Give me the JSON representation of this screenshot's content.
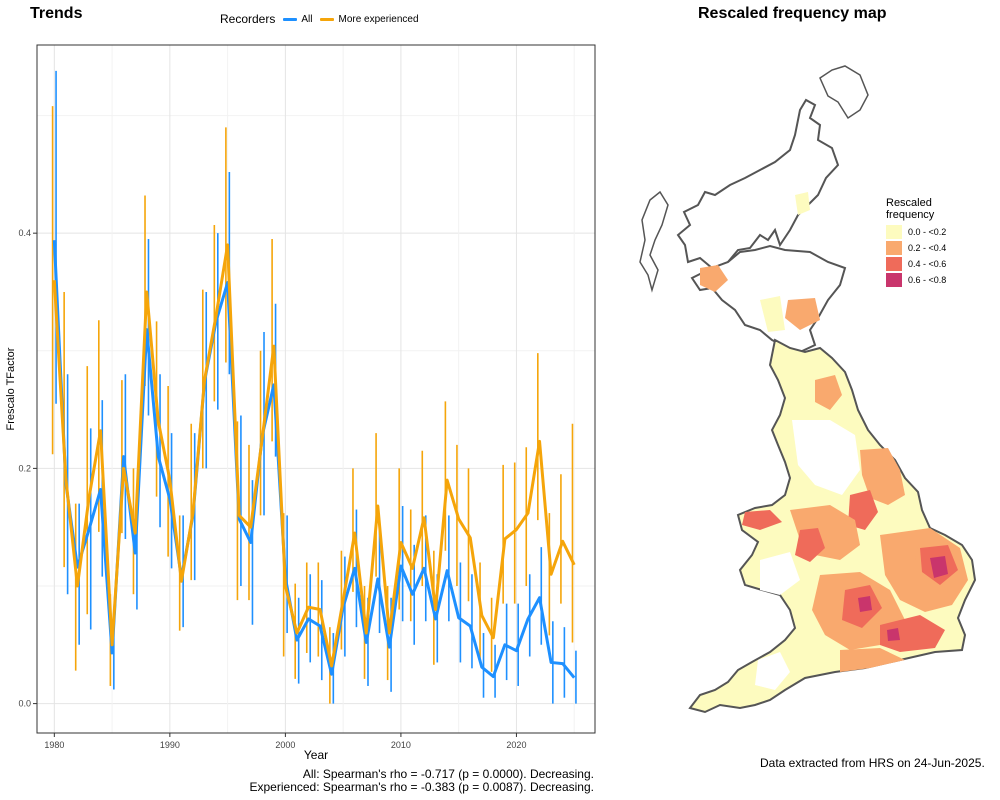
{
  "left_title": "Trends",
  "legend": {
    "title": "Recorders",
    "items": [
      {
        "label": "All",
        "color": "#1e90ff"
      },
      {
        "label": "More experienced",
        "color": "#f5a50a"
      }
    ]
  },
  "stats": {
    "all": "All: Spearman's rho = -0.717 (p = 0.0000). Decreasing.",
    "experienced": "Experienced: Spearman's rho = -0.383 (p = 0.0087). Decreasing."
  },
  "right_title": "Rescaled frequency map",
  "map_legend": {
    "title_line1": "Rescaled",
    "title_line2": "frequency",
    "items": [
      {
        "label": "0.0 - <0.2",
        "color": "#fdfbbf"
      },
      {
        "label": "0.2 - <0.4",
        "color": "#f9a96e"
      },
      {
        "label": "0.4 - <0.6",
        "color": "#ef6b5a"
      },
      {
        "label": "0.6 - <0.8",
        "color": "#c9356c"
      }
    ]
  },
  "footer": "Data extracted from HRS on 24-Jun-2025.",
  "chart_data": {
    "type": "line",
    "title": "",
    "xlabel": "Year",
    "ylabel": "Frescalo TFactor",
    "xlim": [
      1978.5,
      2026.8
    ],
    "ylim": [
      -0.025,
      0.56
    ],
    "x_ticks": [
      1980,
      1990,
      2000,
      2010,
      2020
    ],
    "y_ticks": [
      0.0,
      0.2,
      0.4
    ],
    "y_tick_labels": [
      "0.0",
      "0.2",
      "0.4"
    ],
    "grid": true,
    "legend_position": "top",
    "x": [
      1980,
      1981,
      1982,
      1983,
      1984,
      1985,
      1986,
      1987,
      1988,
      1989,
      1990,
      1991,
      1992,
      1993,
      1994,
      1995,
      1996,
      1997,
      1998,
      1999,
      2000,
      2001,
      2002,
      2003,
      2004,
      2005,
      2006,
      2007,
      2008,
      2009,
      2010,
      2011,
      2012,
      2013,
      2014,
      2015,
      2016,
      2017,
      2018,
      2019,
      2020,
      2021,
      2022,
      2023,
      2024,
      2025
    ],
    "series": [
      {
        "name": "All",
        "color": "#1e90ff",
        "values": [
          0.394,
          0.187,
          0.116,
          0.148,
          0.182,
          0.043,
          0.21,
          0.128,
          0.318,
          0.21,
          0.174,
          0.107,
          0.16,
          0.274,
          0.325,
          0.358,
          0.157,
          0.137,
          0.228,
          0.271,
          0.107,
          0.054,
          0.072,
          0.066,
          0.025,
          0.082,
          0.115,
          0.052,
          0.106,
          0.048,
          0.117,
          0.093,
          0.115,
          0.072,
          0.113,
          0.073,
          0.066,
          0.031,
          0.023,
          0.05,
          0.045,
          0.072,
          0.09,
          0.035,
          0.034,
          0.022
        ],
        "lower": [
          0.255,
          0.093,
          0.05,
          0.063,
          0.108,
          0.012,
          0.14,
          0.08,
          0.245,
          0.15,
          0.115,
          0.065,
          0.105,
          0.2,
          0.25,
          0.28,
          0.1,
          0.067,
          0.16,
          0.21,
          0.06,
          0.017,
          0.035,
          0.02,
          0.0,
          0.04,
          0.065,
          0.015,
          0.06,
          0.01,
          0.07,
          0.05,
          0.07,
          0.035,
          0.07,
          0.035,
          0.03,
          0.005,
          0.005,
          0.02,
          0.015,
          0.04,
          0.05,
          0.0,
          0.005,
          0.0
        ],
        "upper": [
          0.538,
          0.28,
          0.17,
          0.234,
          0.258,
          0.075,
          0.28,
          0.18,
          0.395,
          0.28,
          0.23,
          0.16,
          0.23,
          0.35,
          0.4,
          0.452,
          0.245,
          0.19,
          0.316,
          0.34,
          0.16,
          0.09,
          0.11,
          0.105,
          0.06,
          0.125,
          0.165,
          0.09,
          0.15,
          0.09,
          0.168,
          0.135,
          0.16,
          0.11,
          0.16,
          0.12,
          0.11,
          0.06,
          0.05,
          0.085,
          0.085,
          0.11,
          0.133,
          0.07,
          0.065,
          0.045
        ]
      },
      {
        "name": "More experienced",
        "color": "#f5a50a",
        "values": [
          0.36,
          0.191,
          0.1,
          0.175,
          0.232,
          0.05,
          0.2,
          0.145,
          0.35,
          0.24,
          0.19,
          0.104,
          0.162,
          0.275,
          0.33,
          0.39,
          0.16,
          0.15,
          0.226,
          0.304,
          0.1,
          0.06,
          0.082,
          0.08,
          0.032,
          0.088,
          0.145,
          0.06,
          0.168,
          0.06,
          0.137,
          0.115,
          0.158,
          0.08,
          0.19,
          0.157,
          0.141,
          0.075,
          0.056,
          0.14,
          0.148,
          0.162,
          0.223,
          0.11,
          0.138,
          0.118
        ],
        "lower": [
          0.212,
          0.116,
          0.028,
          0.076,
          0.146,
          0.015,
          0.145,
          0.093,
          0.27,
          0.176,
          0.125,
          0.062,
          0.105,
          0.2,
          0.257,
          0.29,
          0.088,
          0.088,
          0.16,
          0.223,
          0.04,
          0.021,
          0.043,
          0.04,
          0.0,
          0.046,
          0.095,
          0.021,
          0.108,
          0.02,
          0.08,
          0.07,
          0.1,
          0.033,
          0.13,
          0.1,
          0.087,
          0.037,
          0.027,
          0.085,
          0.085,
          0.1,
          0.156,
          0.058,
          0.085,
          0.052
        ],
        "upper": [
          0.508,
          0.35,
          0.17,
          0.287,
          0.326,
          0.093,
          0.275,
          0.2,
          0.432,
          0.325,
          0.27,
          0.16,
          0.238,
          0.352,
          0.407,
          0.49,
          0.24,
          0.22,
          0.3,
          0.395,
          0.162,
          0.102,
          0.12,
          0.12,
          0.065,
          0.13,
          0.2,
          0.1,
          0.23,
          0.1,
          0.2,
          0.165,
          0.215,
          0.13,
          0.257,
          0.22,
          0.2,
          0.12,
          0.09,
          0.203,
          0.205,
          0.218,
          0.298,
          0.162,
          0.195,
          0.238
        ]
      }
    ]
  }
}
